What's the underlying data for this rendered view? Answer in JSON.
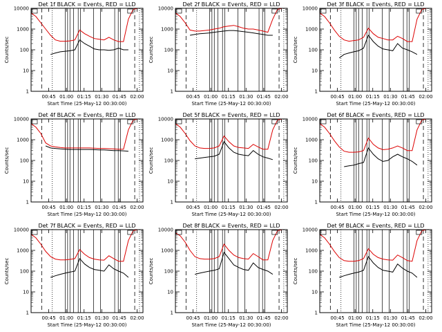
{
  "colors": {
    "events": "#000000",
    "lld": "#dd0000"
  },
  "chart_data": [
    {
      "type": "line",
      "title": "Det 1f BLACK = Events, RED = LLD",
      "xlabel": "Start Time (25-May-12 00:30:00)",
      "ylabel": "Counts/sec",
      "x_ticks": [
        "00:45",
        "01:00",
        "01:15",
        "01:30",
        "01:45",
        "02:00"
      ],
      "y_ticks": [
        "1",
        "10",
        "100",
        "1000",
        "10000"
      ],
      "y_scale": "log",
      "ylim": [
        1,
        10000
      ],
      "series": [
        {
          "name": "Events",
          "color": "#000000",
          "values": [
            null,
            null,
            null,
            null,
            60,
            70,
            80,
            85,
            90,
            100,
            300,
            200,
            150,
            110,
            100,
            100,
            95,
            100,
            120,
            100,
            100,
            null,
            null,
            null
          ]
        },
        {
          "name": "LLD",
          "color": "#dd0000",
          "values": [
            6000,
            4000,
            2000,
            1000,
            500,
            300,
            260,
            260,
            270,
            300,
            900,
            600,
            450,
            350,
            320,
            300,
            400,
            300,
            250,
            250,
            3000,
            9000,
            10000,
            10000
          ]
        }
      ]
    },
    {
      "type": "line",
      "title": "Det 2f BLACK = Events, RED = LLD",
      "xlabel": "Start Time (25-May-12 00:30:00)",
      "ylabel": "Counts/sec",
      "x_ticks": [
        "00:45",
        "01:00",
        "01:15",
        "01:30",
        "01:45",
        "02:00"
      ],
      "y_ticks": [
        "1",
        "10",
        "100",
        "1000",
        "10000"
      ],
      "y_scale": "log",
      "ylim": [
        1,
        10000
      ],
      "series": [
        {
          "name": "Events",
          "color": "#000000",
          "values": [
            null,
            null,
            null,
            500,
            550,
            600,
            620,
            650,
            700,
            750,
            800,
            850,
            850,
            800,
            750,
            700,
            650,
            600,
            550,
            500,
            500,
            null,
            null,
            null
          ]
        },
        {
          "name": "LLD",
          "color": "#dd0000",
          "values": [
            6000,
            4000,
            2000,
            900,
            800,
            800,
            850,
            900,
            1000,
            1100,
            1300,
            1400,
            1500,
            1300,
            1100,
            1000,
            1000,
            900,
            800,
            700,
            3000,
            9000,
            10000,
            10000
          ]
        }
      ]
    },
    {
      "type": "line",
      "title": "Det 3f BLACK = Events, RED = LLD",
      "xlabel": "Start Time (25-May-12 00:30:00)",
      "ylabel": "Counts/sec",
      "x_ticks": [
        "00:45",
        "01:00",
        "01:15",
        "01:30",
        "01:45",
        "02:00"
      ],
      "y_ticks": [
        "1",
        "10",
        "100",
        "1000",
        "10000"
      ],
      "y_scale": "log",
      "ylim": [
        1,
        10000
      ],
      "series": [
        {
          "name": "Events",
          "color": "#000000",
          "values": [
            null,
            null,
            null,
            null,
            40,
            60,
            70,
            80,
            90,
            120,
            500,
            250,
            150,
            110,
            100,
            90,
            200,
            120,
            100,
            80,
            60,
            null,
            null,
            null
          ]
        },
        {
          "name": "LLD",
          "color": "#dd0000",
          "values": [
            6000,
            4000,
            2000,
            900,
            450,
            300,
            260,
            280,
            300,
            400,
            1100,
            600,
            400,
            350,
            300,
            300,
            450,
            350,
            250,
            250,
            3000,
            9000,
            10000,
            10000
          ]
        }
      ]
    },
    {
      "type": "line",
      "title": "Det 4f BLACK = Events, RED = LLD",
      "xlabel": "Start Time (25-May-12 00:30:00)",
      "ylabel": "Counts/sec",
      "x_ticks": [
        "00:45",
        "01:00",
        "01:15",
        "01:30",
        "01:45",
        "02:00"
      ],
      "y_ticks": [
        "1",
        "10",
        "100",
        "1000",
        "10000"
      ],
      "y_scale": "log",
      "ylim": [
        1,
        10000
      ],
      "series": [
        {
          "name": "Events",
          "color": "#000000",
          "values": [
            null,
            null,
            null,
            500,
            400,
            380,
            360,
            350,
            340,
            340,
            340,
            340,
            340,
            330,
            320,
            320,
            310,
            300,
            300,
            290,
            280,
            null,
            null,
            null
          ]
        },
        {
          "name": "LLD",
          "color": "#dd0000",
          "values": [
            6000,
            4000,
            2000,
            700,
            500,
            450,
            420,
            400,
            400,
            400,
            400,
            400,
            400,
            390,
            380,
            380,
            370,
            360,
            350,
            350,
            3000,
            9000,
            10000,
            10000
          ]
        }
      ]
    },
    {
      "type": "line",
      "title": "Det 5f BLACK = Events, RED = LLD",
      "xlabel": "Start Time (25-May-12 00:30:00)",
      "ylabel": "Counts/sec",
      "x_ticks": [
        "00:45",
        "01:00",
        "01:15",
        "01:30",
        "01:45",
        "02:00"
      ],
      "y_ticks": [
        "1",
        "10",
        "100",
        "1000",
        "10000"
      ],
      "y_scale": "log",
      "ylim": [
        1,
        10000
      ],
      "series": [
        {
          "name": "Events",
          "color": "#000000",
          "values": [
            null,
            null,
            null,
            null,
            120,
            130,
            140,
            150,
            160,
            200,
            800,
            400,
            250,
            200,
            180,
            170,
            300,
            200,
            150,
            130,
            110,
            null,
            null,
            null
          ]
        },
        {
          "name": "LLD",
          "color": "#dd0000",
          "values": [
            6000,
            4000,
            2000,
            900,
            500,
            400,
            380,
            380,
            400,
            500,
            1500,
            800,
            500,
            420,
            400,
            380,
            600,
            450,
            350,
            350,
            3000,
            9000,
            10000,
            10000
          ]
        }
      ]
    },
    {
      "type": "line",
      "title": "Det 6f BLACK = Events, RED = LLD",
      "xlabel": "Start Time (25-May-12 00:30:00)",
      "ylabel": "Counts/sec",
      "x_ticks": [
        "00:45",
        "01:00",
        "01:15",
        "01:30",
        "01:45",
        "02:00"
      ],
      "y_ticks": [
        "1",
        "10",
        "100",
        "1000",
        "10000"
      ],
      "y_scale": "log",
      "ylim": [
        1,
        10000
      ],
      "series": [
        {
          "name": "Events",
          "color": "#000000",
          "values": [
            null,
            null,
            null,
            null,
            null,
            50,
            55,
            60,
            70,
            80,
            400,
            200,
            120,
            90,
            100,
            150,
            200,
            150,
            120,
            90,
            60,
            null,
            null,
            null
          ]
        },
        {
          "name": "LLD",
          "color": "#dd0000",
          "values": [
            6000,
            4000,
            2000,
            900,
            450,
            280,
            250,
            250,
            260,
            300,
            1200,
            600,
            400,
            330,
            350,
            400,
            500,
            400,
            300,
            300,
            3000,
            9000,
            10000,
            10000
          ]
        }
      ]
    },
    {
      "type": "line",
      "title": "Det 7f BLACK = Events, RED = LLD",
      "xlabel": "Start Time (25-May-12 00:30:00)",
      "ylabel": "Counts/sec",
      "x_ticks": [
        "00:45",
        "01:00",
        "01:15",
        "01:30",
        "01:45",
        "02:00"
      ],
      "y_ticks": [
        "1",
        "10",
        "100",
        "1000",
        "10000"
      ],
      "y_scale": "log",
      "ylim": [
        1,
        10000
      ],
      "series": [
        {
          "name": "Events",
          "color": "#000000",
          "values": [
            null,
            null,
            null,
            null,
            50,
            60,
            70,
            80,
            90,
            100,
            400,
            220,
            150,
            120,
            110,
            100,
            200,
            130,
            100,
            80,
            50,
            null,
            null,
            null
          ]
        },
        {
          "name": "LLD",
          "color": "#dd0000",
          "values": [
            6000,
            4000,
            2000,
            900,
            500,
            380,
            350,
            350,
            370,
            400,
            1100,
            650,
            450,
            380,
            350,
            340,
            550,
            400,
            300,
            300,
            3000,
            9000,
            10000,
            10000
          ]
        }
      ]
    },
    {
      "type": "line",
      "title": "Det 8f BLACK = Events, RED = LLD",
      "xlabel": "Start Time (25-May-12 00:30:00)",
      "ylabel": "Counts/sec",
      "x_ticks": [
        "00:45",
        "01:00",
        "01:15",
        "01:30",
        "01:45",
        "02:00"
      ],
      "y_ticks": [
        "1",
        "10",
        "100",
        "1000",
        "10000"
      ],
      "y_scale": "log",
      "ylim": [
        1,
        10000
      ],
      "series": [
        {
          "name": "Events",
          "color": "#000000",
          "values": [
            null,
            null,
            null,
            null,
            70,
            80,
            90,
            100,
            110,
            130,
            800,
            400,
            200,
            150,
            120,
            110,
            250,
            150,
            120,
            100,
            70,
            null,
            null,
            null
          ]
        },
        {
          "name": "LLD",
          "color": "#dd0000",
          "values": [
            7000,
            5000,
            2500,
            1000,
            500,
            400,
            380,
            380,
            400,
            500,
            2000,
            1000,
            600,
            450,
            400,
            380,
            700,
            500,
            350,
            350,
            3000,
            9000,
            10000,
            10000
          ]
        }
      ]
    },
    {
      "type": "line",
      "title": "Det 9f BLACK = Events, RED = LLD",
      "xlabel": "Start Time (25-May-12 00:30:00)",
      "ylabel": "Counts/sec",
      "x_ticks": [
        "00:45",
        "01:00",
        "01:15",
        "01:30",
        "01:45",
        "02:00"
      ],
      "y_ticks": [
        "1",
        "10",
        "100",
        "1000",
        "10000"
      ],
      "y_scale": "log",
      "ylim": [
        1,
        10000
      ],
      "series": [
        {
          "name": "Events",
          "color": "#000000",
          "values": [
            null,
            null,
            null,
            null,
            50,
            60,
            70,
            80,
            90,
            110,
            500,
            250,
            150,
            110,
            100,
            90,
            220,
            140,
            100,
            80,
            50,
            null,
            null,
            null
          ]
        },
        {
          "name": "LLD",
          "color": "#dd0000",
          "values": [
            6000,
            4000,
            2000,
            900,
            450,
            320,
            300,
            300,
            320,
            400,
            1200,
            650,
            450,
            380,
            350,
            340,
            600,
            450,
            320,
            300,
            3000,
            9000,
            10000,
            10000
          ]
        }
      ]
    }
  ]
}
